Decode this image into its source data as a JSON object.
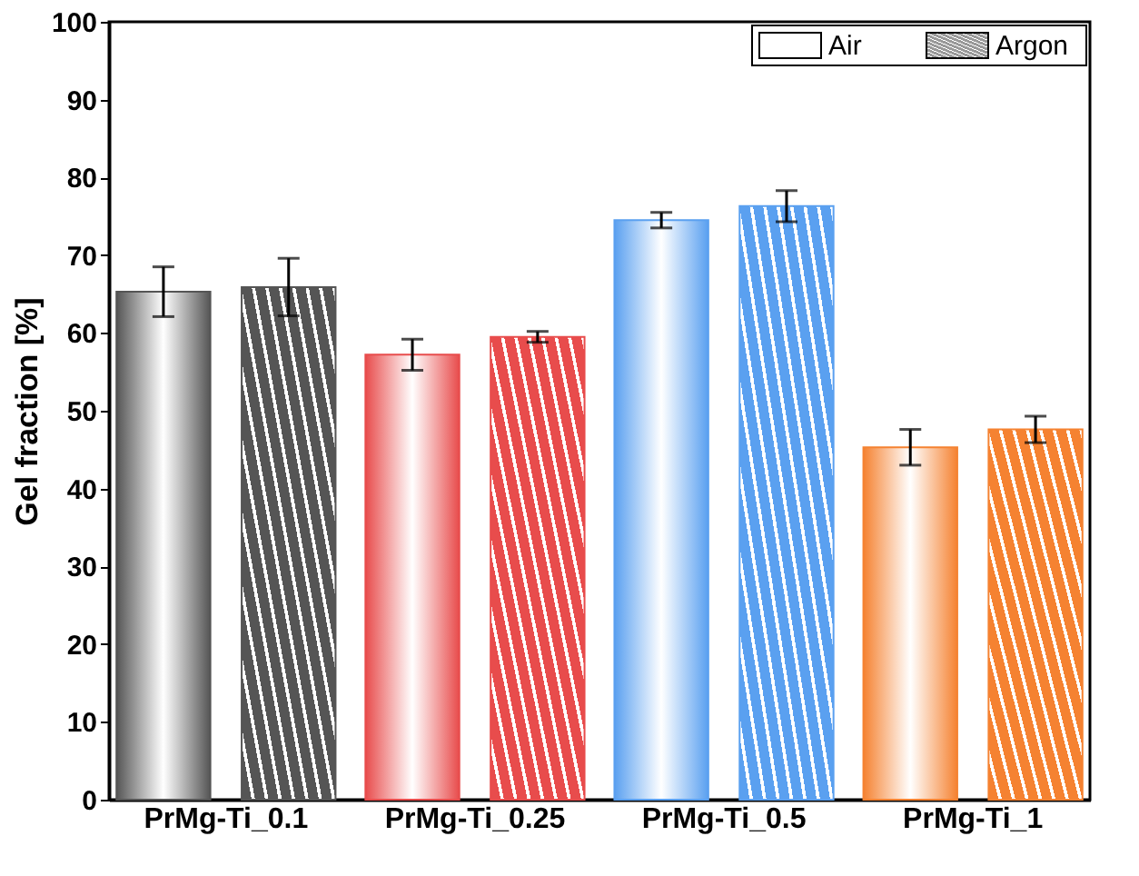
{
  "chart_data": {
    "type": "bar",
    "ylabel": "Gel fraction [%]",
    "categories": [
      "PrMg-Ti_0.1",
      "PrMg-Ti_0.25",
      "PrMg-Ti_0.5",
      "PrMg-Ti_1"
    ],
    "series": [
      {
        "name": "Air",
        "colors": [
          "#555555",
          "#e84c4c",
          "#5aa0f0",
          "#f58231"
        ],
        "values": [
          65.3,
          57.2,
          74.5,
          45.3
        ],
        "errors": [
          3.2,
          2.0,
          1.0,
          2.3
        ]
      },
      {
        "name": "Argon",
        "colors": [
          "#555555",
          "#e84c4c",
          "#5aa0f0",
          "#f58231"
        ],
        "values": [
          65.9,
          59.5,
          76.3,
          47.6
        ],
        "errors": [
          3.7,
          0.7,
          2.0,
          1.7
        ]
      }
    ],
    "ylim": [
      0,
      100
    ],
    "yticks": [
      0,
      10,
      20,
      30,
      40,
      50,
      60,
      70,
      80,
      90,
      100
    ],
    "legend": "top right",
    "grid": false
  }
}
